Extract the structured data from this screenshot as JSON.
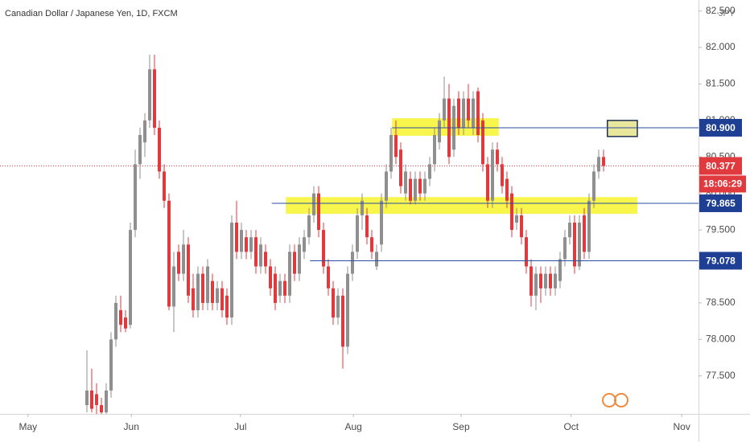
{
  "chart_data": {
    "type": "candlestick",
    "title": "Canadian Dollar / Japanese Yen, 1D, FXCM",
    "currency": "JPY",
    "up_color": "#8f8f8f",
    "down_color": "#e0393e",
    "level_color": "#2a4ea2",
    "zone_color": "#f7f43a",
    "grid": false,
    "x": [
      0,
      1,
      2,
      3,
      4,
      5,
      6,
      7,
      8,
      9,
      10,
      11,
      12,
      13,
      14,
      15,
      16,
      17,
      18,
      19,
      20,
      21,
      22,
      23,
      24,
      25,
      26,
      27,
      28,
      29,
      30,
      31,
      32,
      33,
      34,
      35,
      36,
      37,
      38,
      39,
      40,
      41,
      42,
      43,
      44,
      45,
      46,
      47,
      48,
      49,
      50,
      51,
      52,
      53,
      54,
      55,
      56,
      57,
      58,
      59,
      60,
      61,
      62,
      63,
      64,
      65,
      66,
      67,
      68,
      69,
      70,
      71,
      72,
      73,
      74,
      75,
      76,
      77,
      78,
      79,
      80,
      81,
      82,
      83,
      84,
      85,
      86,
      87,
      88,
      89,
      90,
      91,
      92,
      93,
      94,
      95,
      96,
      97,
      98,
      99,
      100,
      101,
      102,
      103,
      104,
      105,
      106,
      107
    ],
    "open": [
      77.1,
      77.3,
      77.25,
      77.1,
      77.0,
      77.3,
      78.0,
      78.4,
      78.3,
      78.2,
      79.5,
      80.4,
      80.7,
      81.0,
      81.7,
      80.9,
      80.3,
      79.9,
      78.45,
      79.2,
      78.9,
      79.3,
      78.7,
      78.4,
      78.9,
      78.5,
      78.8,
      78.5,
      78.7,
      78.6,
      78.3,
      79.6,
      79.2,
      79.4,
      79.2,
      79.4,
      79.0,
      79.2,
      79.0,
      78.9,
      78.6,
      78.8,
      78.6,
      79.2,
      78.9,
      79.2,
      79.4,
      79.7,
      80.0,
      79.5,
      79.0,
      78.7,
      78.3,
      78.6,
      77.9,
      78.9,
      79.2,
      79.7,
      79.7,
      79.4,
      79.0,
      79.3,
      79.9,
      80.3,
      80.8,
      80.6,
      80.0,
      80.2,
      79.9,
      80.2,
      80.0,
      80.2,
      80.4,
      80.7,
      81.0,
      81.3,
      80.6,
      81.3,
      80.9,
      81.3,
      80.9,
      81.4,
      81.0,
      80.4,
      79.9,
      80.6,
      80.4,
      80.2,
      80.0,
      79.6,
      79.7,
      79.4,
      79.0,
      78.6,
      78.9,
      78.7,
      78.9,
      78.7,
      78.8,
      79.1,
      79.4,
      79.6,
      79.0,
      79.7,
      79.2,
      79.9,
      80.3,
      80.5
    ],
    "high": [
      77.85,
      77.6,
      77.4,
      77.2,
      77.4,
      78.1,
      78.6,
      78.6,
      78.4,
      79.6,
      80.6,
      80.9,
      81.1,
      81.9,
      81.9,
      81.0,
      80.4,
      80.0,
      79.2,
      79.3,
      79.5,
      79.4,
      78.9,
      79.0,
      79.0,
      79.1,
      78.9,
      78.8,
      78.8,
      78.7,
      79.7,
      79.9,
      79.6,
      79.5,
      79.5,
      79.5,
      79.4,
      79.3,
      79.1,
      79.0,
      78.9,
      78.9,
      79.3,
      79.3,
      79.4,
      79.5,
      79.8,
      80.1,
      80.1,
      79.6,
      79.1,
      78.8,
      78.7,
      78.7,
      79.0,
      79.3,
      79.8,
      80.0,
      79.8,
      79.5,
      79.3,
      80.0,
      80.4,
      80.9,
      81.0,
      80.7,
      80.4,
      80.3,
      80.3,
      80.3,
      80.3,
      80.5,
      80.9,
      81.1,
      81.6,
      81.5,
      81.3,
      81.4,
      81.4,
      81.5,
      81.4,
      81.45,
      81.1,
      80.5,
      80.7,
      80.7,
      80.5,
      80.3,
      80.1,
      79.8,
      79.8,
      79.5,
      79.1,
      79.0,
      79.0,
      79.0,
      79.0,
      79.0,
      79.2,
      79.5,
      79.7,
      79.7,
      79.7,
      79.8,
      80.0,
      80.4,
      80.6,
      80.6
    ],
    "low": [
      77.0,
      77.0,
      76.98,
      76.98,
      76.98,
      77.2,
      77.9,
      78.1,
      78.1,
      78.15,
      79.4,
      80.2,
      80.5,
      80.9,
      80.8,
      80.2,
      79.8,
      78.4,
      78.1,
      78.8,
      78.8,
      78.5,
      78.3,
      78.3,
      78.4,
      78.4,
      78.4,
      78.4,
      78.3,
      78.2,
      78.2,
      79.1,
      79.1,
      79.1,
      79.1,
      78.9,
      78.9,
      78.9,
      78.6,
      78.4,
      78.5,
      78.5,
      78.5,
      78.8,
      78.8,
      79.1,
      79.3,
      79.6,
      79.4,
      78.9,
      78.6,
      78.2,
      78.2,
      77.6,
      77.8,
      78.8,
      79.1,
      79.5,
      79.3,
      79.1,
      78.95,
      79.2,
      79.8,
      80.2,
      80.4,
      80.0,
      79.9,
      79.85,
      79.85,
      79.9,
      79.9,
      80.1,
      80.3,
      80.6,
      80.9,
      80.4,
      80.5,
      80.8,
      80.8,
      80.9,
      80.8,
      80.7,
      80.3,
      79.8,
      79.8,
      80.3,
      80.0,
      79.8,
      79.4,
      79.5,
      79.3,
      78.9,
      78.45,
      78.4,
      78.5,
      78.6,
      78.6,
      78.6,
      78.7,
      79.0,
      79.3,
      78.9,
      78.95,
      79.1,
      79.1,
      79.8,
      80.2,
      80.3
    ],
    "close": [
      77.3,
      77.05,
      77.1,
      77.0,
      77.3,
      78.0,
      78.5,
      78.2,
      78.15,
      79.5,
      80.4,
      80.8,
      81.0,
      81.7,
      80.9,
      80.3,
      79.9,
      78.45,
      79.0,
      78.9,
      79.3,
      78.6,
      78.4,
      78.9,
      78.5,
      79.0,
      78.5,
      78.7,
      78.4,
      78.3,
      79.6,
      79.2,
      79.5,
      79.2,
      79.4,
      79.0,
      79.3,
      79.0,
      78.7,
      78.5,
      78.8,
      78.6,
      79.2,
      78.9,
      79.3,
      79.4,
      79.7,
      80.0,
      79.5,
      79.0,
      78.7,
      78.3,
      78.6,
      77.9,
      78.9,
      79.2,
      79.7,
      79.9,
      79.4,
      79.2,
      79.2,
      79.9,
      80.3,
      80.8,
      80.5,
      80.1,
      80.3,
      79.9,
      80.2,
      80.0,
      80.2,
      80.4,
      80.8,
      81.0,
      81.3,
      80.5,
      81.2,
      80.9,
      81.3,
      81.0,
      81.3,
      80.8,
      80.4,
      79.9,
      80.6,
      80.4,
      80.1,
      79.9,
      79.5,
      79.7,
      79.4,
      79.0,
      78.6,
      78.9,
      78.7,
      78.9,
      78.7,
      78.9,
      79.1,
      79.4,
      79.6,
      79.0,
      79.6,
      79.2,
      79.9,
      80.3,
      80.5,
      80.377
    ],
    "xlim": [
      -18,
      126.67
    ],
    "xticks": [
      {
        "value": -12.2,
        "label": "May"
      },
      {
        "value": 9.2,
        "label": "Jun"
      },
      {
        "value": 31.8,
        "label": "Jul"
      },
      {
        "value": 55.2,
        "label": "Aug"
      },
      {
        "value": 77.5,
        "label": "Sep"
      },
      {
        "value": 100.3,
        "label": "Oct"
      },
      {
        "value": 123.2,
        "label": "Nov"
      }
    ],
    "ylim": [
      76.98,
      82.65
    ],
    "yticks": [
      {
        "value": 77.5,
        "label": "77.500"
      },
      {
        "value": 78,
        "label": "78.000"
      },
      {
        "value": 78.5,
        "label": "78.500"
      },
      {
        "value": 79,
        "label": "79.000"
      },
      {
        "value": 79.5,
        "label": "79.500"
      },
      {
        "value": 80,
        "label": "80.000"
      },
      {
        "value": 80.5,
        "label": "80.500"
      },
      {
        "value": 81,
        "label": "81.000"
      },
      {
        "value": 81.5,
        "label": "81.500"
      },
      {
        "value": 82,
        "label": "82.000"
      },
      {
        "value": 82.5,
        "label": "82.500"
      }
    ],
    "zones": [
      {
        "x": [
          63.2,
          85.3
        ],
        "y": [
          80.79,
          81.03
        ]
      },
      {
        "x": [
          41.2,
          114
        ],
        "y": [
          79.72,
          79.95
        ]
      }
    ],
    "box": {
      "x": [
        107.8,
        114
      ],
      "y": [
        80.78,
        81.0
      ]
    },
    "levels": [
      {
        "value": 80.9,
        "label": "80.900",
        "x": 63.2
      },
      {
        "value": 79.865,
        "label": "79.865",
        "x": 38.3
      },
      {
        "value": 79.078,
        "label": "79.078",
        "x": 46.2
      }
    ],
    "last_price": 80.377,
    "countdown": "18:06:29"
  }
}
